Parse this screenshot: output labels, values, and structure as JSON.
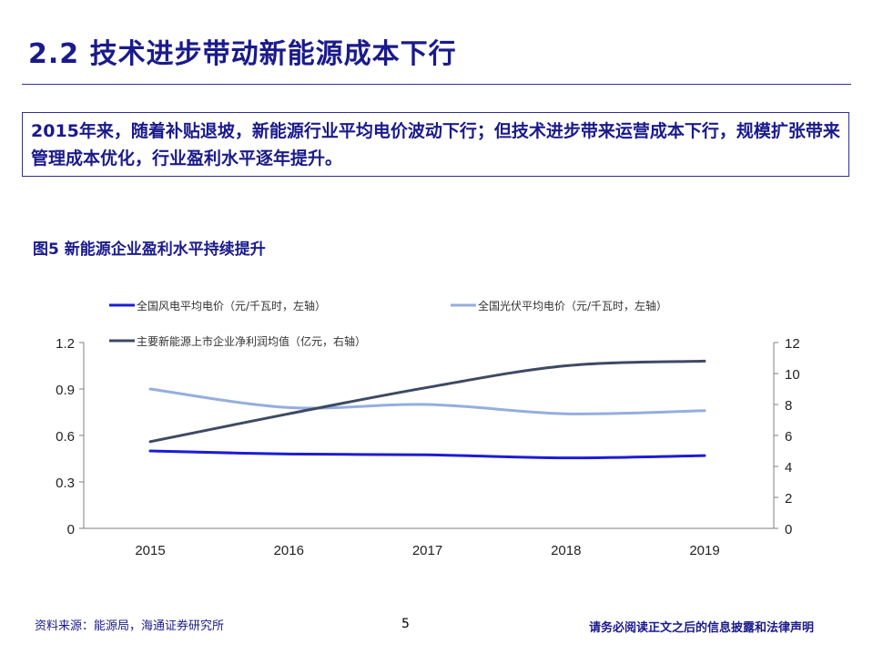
{
  "page": {
    "title": "2.2 技术进步带动新能源成本下行",
    "summary": "2015年来，随着补贴退坡，新能源行业平均电价波动下行；但技术进步带来运营成本下行，规模扩张带来管理成本优化，行业盈利水平逐年提升。",
    "figure_title": "图5 新能源企业盈利水平持续提升",
    "footer_source": "资料来源：能源局，海通证券研究所",
    "page_number": "5",
    "footer_disclaimer": "请务必阅读正文之后的信息披露和法律声明"
  },
  "colors": {
    "brand_blue": "#1a1a8c",
    "wind": "#1c1cd6",
    "solar": "#94aede",
    "profit": "#3d4a63"
  },
  "chart_data": {
    "type": "line",
    "x": [
      "2015",
      "2016",
      "2017",
      "2018",
      "2019"
    ],
    "y_left_lim": [
      0,
      1.2
    ],
    "y_left_ticks": [
      "0",
      "0.3",
      "0.6",
      "0.9",
      "1.2"
    ],
    "y_right_lim": [
      0,
      12
    ],
    "y_right_ticks": [
      "0",
      "2",
      "4",
      "6",
      "8",
      "10",
      "12"
    ],
    "legend_position": "top",
    "grid": false,
    "series": [
      {
        "name": "全国风电平均电价（元/千瓦时，左轴）",
        "axis": "left",
        "color": "#1c1cd6",
        "values": [
          0.5,
          0.48,
          0.475,
          0.455,
          0.47
        ]
      },
      {
        "name": "全国光伏平均电价（元/千瓦时，左轴）",
        "axis": "left",
        "color": "#94aede",
        "values": [
          0.9,
          0.78,
          0.8,
          0.74,
          0.76
        ]
      },
      {
        "name": "主要新能源上市企业净利润均值（亿元，右轴）",
        "axis": "right",
        "color": "#3d4a63",
        "values": [
          5.6,
          7.4,
          9.1,
          10.5,
          10.8
        ]
      }
    ]
  }
}
